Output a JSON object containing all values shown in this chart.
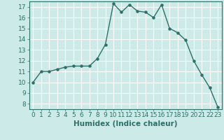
{
  "x": [
    0,
    1,
    2,
    3,
    4,
    5,
    6,
    7,
    8,
    9,
    10,
    11,
    12,
    13,
    14,
    15,
    16,
    17,
    18,
    19,
    20,
    21,
    22,
    23
  ],
  "y": [
    10,
    11,
    11,
    11.2,
    11.4,
    11.5,
    11.5,
    11.5,
    12.2,
    13.5,
    17.3,
    16.5,
    17.2,
    16.6,
    16.5,
    16.0,
    17.2,
    15.0,
    14.6,
    13.9,
    12.0,
    10.7,
    9.5,
    7.7
  ],
  "line_color": "#2d7068",
  "marker": "o",
  "marker_size": 2.2,
  "bg_color": "#cceae7",
  "grid_color": "#ffffff",
  "xlabel": "Humidex (Indice chaleur)",
  "ylabel": "",
  "xlim": [
    -0.5,
    23.5
  ],
  "ylim": [
    7.5,
    17.5
  ],
  "yticks": [
    8,
    9,
    10,
    11,
    12,
    13,
    14,
    15,
    16,
    17
  ],
  "xticks": [
    0,
    1,
    2,
    3,
    4,
    5,
    6,
    7,
    8,
    9,
    10,
    11,
    12,
    13,
    14,
    15,
    16,
    17,
    18,
    19,
    20,
    21,
    22,
    23
  ],
  "tick_label_fontsize": 6.5,
  "xlabel_fontsize": 7.5,
  "line_width": 1.0
}
